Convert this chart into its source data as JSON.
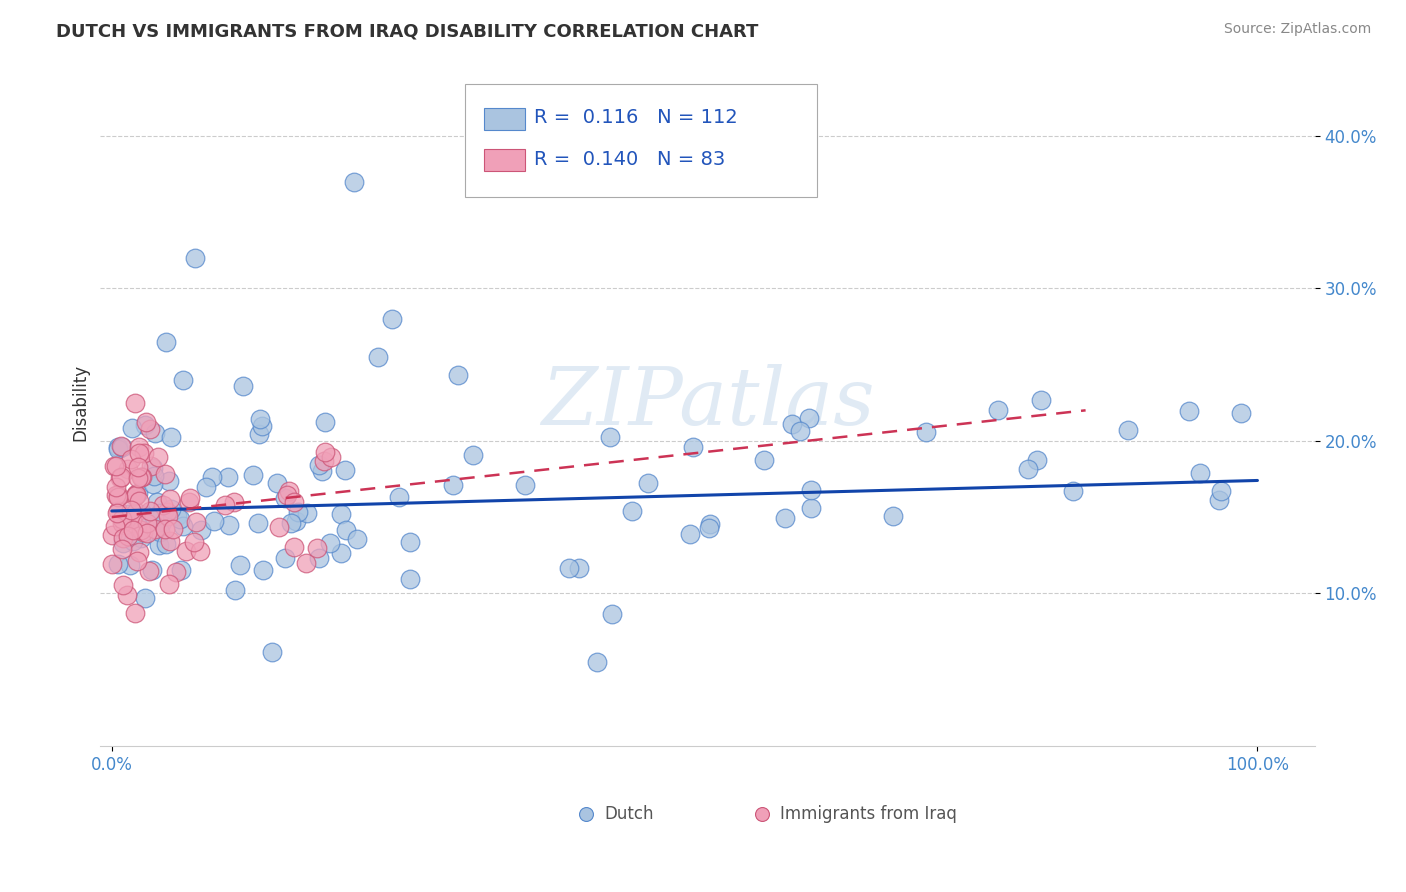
{
  "title": "DUTCH VS IMMIGRANTS FROM IRAQ DISABILITY CORRELATION CHART",
  "source": "Source: ZipAtlas.com",
  "ylabel": "Disability",
  "ylim": [
    0.0,
    0.45
  ],
  "yticks": [
    0.1,
    0.2,
    0.3,
    0.4
  ],
  "yticklabels": [
    "10.0%",
    "20.0%",
    "30.0%",
    "40.0%"
  ],
  "xticks": [
    0.0,
    1.0
  ],
  "xticklabels": [
    "0.0%",
    "100.0%"
  ],
  "dutch_color": "#aac4e0",
  "dutch_edge_color": "#5588cc",
  "iraq_color": "#f0a0b8",
  "iraq_edge_color": "#cc5577",
  "trend_dutch_color": "#1144aa",
  "trend_iraq_color": "#cc3355",
  "R_dutch": "0.116",
  "N_dutch": "112",
  "R_iraq": "0.140",
  "N_iraq": "83",
  "legend_dutch_label": "Dutch",
  "legend_iraq_label": "Immigrants from Iraq",
  "watermark": "ZIPatlas",
  "background_color": "#ffffff",
  "grid_color": "#cccccc",
  "title_color": "#333333",
  "axis_label_color": "#333333",
  "tick_color": "#4488cc",
  "legend_text_color": "#2255bb"
}
